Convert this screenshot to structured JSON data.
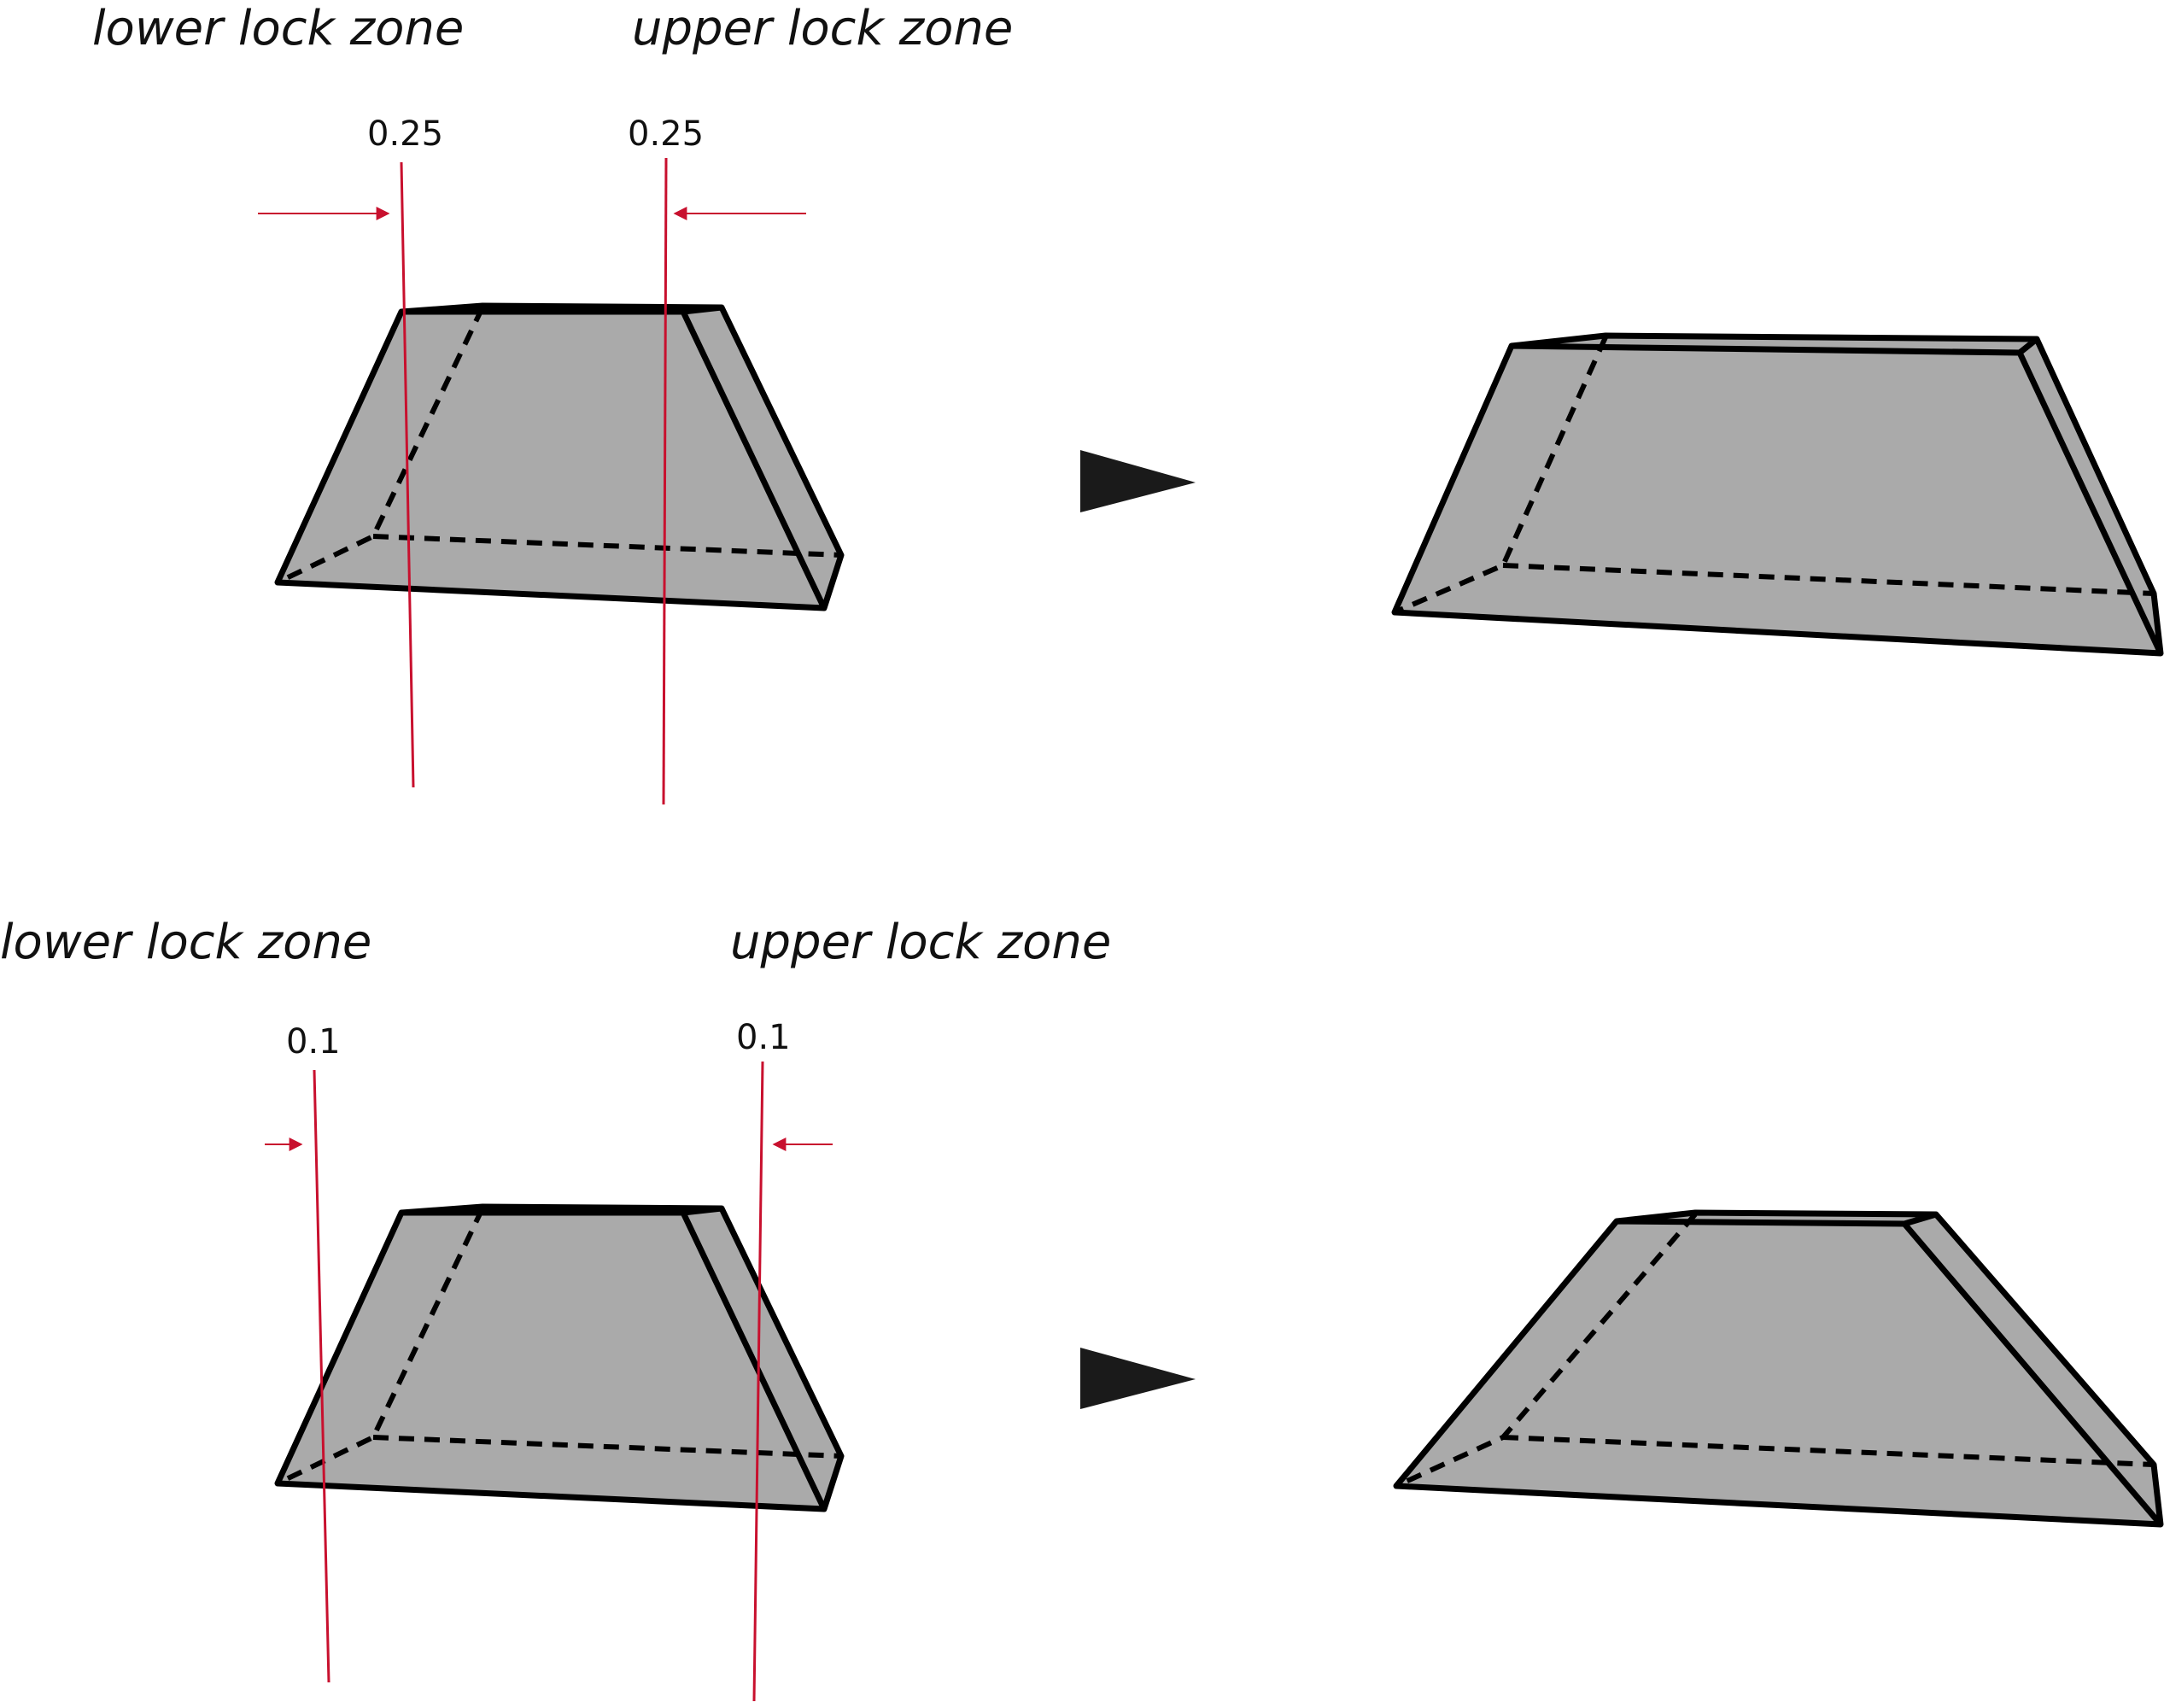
{
  "colors": {
    "solid_fill": "#aaaaaa",
    "edge": "#000000",
    "lock_line": "#c8102e",
    "arrow": "#1a1a1a"
  },
  "rows": [
    {
      "lower_zone_label": "lower lock zone",
      "upper_zone_label": "upper lock zone",
      "lower_value": "0.25",
      "upper_value": "0.25"
    },
    {
      "lower_zone_label": "lower lock zone",
      "upper_zone_label": "upper lock zone",
      "lower_value": "0.1",
      "upper_value": "0.1"
    }
  ]
}
